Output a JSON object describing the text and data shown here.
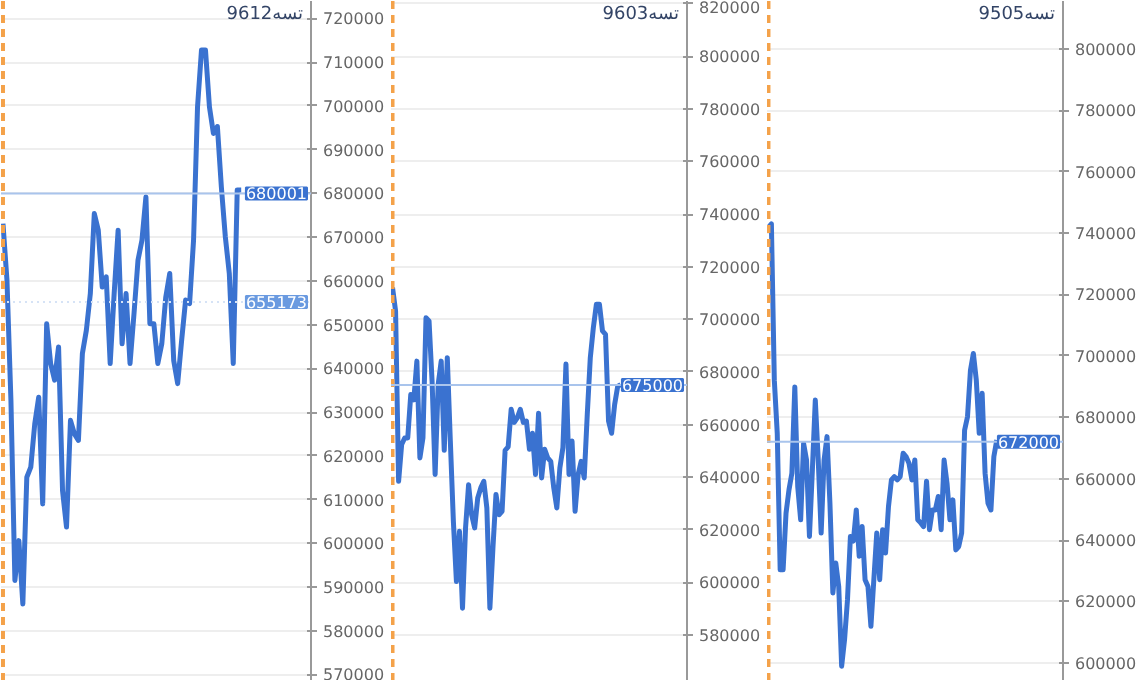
{
  "chart_data": [
    {
      "type": "line",
      "title": "تسه9612",
      "categories": [
        null,
        null,
        null,
        null,
        null,
        null,
        null,
        null,
        null,
        null,
        null,
        null,
        null,
        null,
        null,
        null,
        null,
        null,
        null,
        null,
        null,
        null,
        null,
        null,
        null,
        null,
        null,
        null,
        null,
        null,
        null,
        null,
        null,
        null,
        null,
        null,
        null,
        null,
        null,
        null,
        null,
        null,
        null,
        null,
        null,
        null,
        null,
        null,
        null,
        null,
        null,
        null,
        null,
        null,
        null,
        null,
        null,
        null,
        null,
        null,
        null
      ],
      "ylim": [
        568500,
        724000
      ],
      "yticks": [
        570000,
        580000,
        590000,
        600000,
        610000,
        620000,
        630000,
        640000,
        650000,
        660000,
        670000,
        680000,
        690000,
        700000,
        710000,
        720000
      ],
      "grid": "y",
      "tick_labels": "y",
      "series": [
        {
          "color": "#3a72d0",
          "values": [
            673100,
            660200,
            632700,
            591500,
            600600,
            586100,
            615100,
            617400,
            627300,
            633400,
            609000,
            650200,
            641100,
            637300,
            644900,
            612000,
            603700,
            628100,
            625000,
            623500,
            643400,
            648700,
            657100,
            675400,
            671600,
            658600,
            660900,
            641100,
            657100,
            671600,
            645600,
            657100,
            641100,
            652500,
            664700,
            669300,
            679200,
            650200,
            650200,
            641100,
            645600,
            656300,
            661700,
            641800,
            636500,
            646400,
            655600,
            654800,
            669300,
            699800,
            712800,
            712800,
            699800,
            693700,
            695300,
            681500,
            670100,
            661700,
            641100,
            680800,
            680800
          ]
        }
      ],
      "ref_lines": [
        {
          "axis": "y",
          "value": 680001,
          "label": "680001",
          "color": "#a9c4ec"
        },
        {
          "axis": "y",
          "value": 655173,
          "label": "655173",
          "color": "#d6e3f6",
          "line_style": "dotted"
        }
      ]
    },
    {
      "type": "line",
      "title": "تسه9603",
      "categories": [
        null,
        null,
        null,
        null,
        null,
        null,
        null,
        null,
        null,
        null,
        null,
        null,
        null,
        null,
        null,
        null,
        null,
        null,
        null,
        null,
        null,
        null,
        null,
        null,
        null,
        null,
        null,
        null,
        null,
        null,
        null,
        null,
        null,
        null,
        null,
        null,
        null,
        null,
        null,
        null,
        null,
        null,
        null,
        null,
        null,
        null,
        null,
        null,
        null,
        null,
        null,
        null,
        null,
        null,
        null,
        null,
        null,
        null,
        null,
        null,
        null,
        null,
        null,
        null,
        null,
        null,
        null,
        null,
        null,
        null,
        null,
        null,
        null,
        null,
        null,
        null
      ],
      "ylim": [
        562500,
        821000
      ],
      "yticks": [
        580000,
        600000,
        620000,
        640000,
        660000,
        680000,
        700000,
        720000,
        740000,
        760000,
        780000,
        800000,
        820000
      ],
      "grid": "y",
      "tick_labels": "y",
      "series": [
        {
          "color": "#3a72d0",
          "values": [
            712100,
            703200,
            638400,
            652400,
            654900,
            654900,
            671400,
            669400,
            684100,
            647300,
            654900,
            700600,
            699400,
            676500,
            641000,
            675200,
            684100,
            650200,
            685400,
            653700,
            623200,
            600300,
            619400,
            590200,
            620700,
            637100,
            625700,
            620700,
            632100,
            635900,
            638400,
            628300,
            590200,
            613000,
            633400,
            625700,
            627000,
            650200,
            651500,
            665800,
            660800,
            662500,
            665800,
            660800,
            661300,
            650600,
            656700,
            641000,
            664300,
            639700,
            650600,
            647300,
            646000,
            635900,
            628300,
            643500,
            651200,
            683000,
            641000,
            653700,
            627000,
            641000,
            646000,
            639700,
            663800,
            685400,
            696800,
            705700,
            705700,
            695600,
            694300,
            661300,
            656700,
            667600,
            674500,
            675200
          ]
        }
      ],
      "ref_lines": [
        {
          "axis": "y",
          "value": 675000,
          "label": "675000",
          "color": "#a9c4ec"
        }
      ]
    },
    {
      "type": "line",
      "title": "تسه9505",
      "categories": [
        null,
        null,
        null,
        null,
        null,
        null,
        null,
        null,
        null,
        null,
        null,
        null,
        null,
        null,
        null,
        null,
        null,
        null,
        null,
        null,
        null,
        null,
        null,
        null,
        null,
        null,
        null,
        null,
        null,
        null,
        null,
        null,
        null,
        null,
        null,
        null,
        null,
        null,
        null,
        null,
        null,
        null,
        null,
        null,
        null,
        null,
        null,
        null,
        null,
        null,
        null,
        null,
        null,
        null,
        null,
        null,
        null,
        null,
        null,
        null,
        null,
        null,
        null,
        null,
        null,
        null,
        null,
        null,
        null,
        null,
        null,
        null,
        null,
        null,
        null,
        null,
        null,
        null,
        null
      ],
      "ylim": [
        594100,
        815600
      ],
      "yticks": [
        600000,
        620000,
        640000,
        660000,
        680000,
        700000,
        720000,
        740000,
        760000,
        780000,
        800000
      ],
      "grid": "y",
      "tick_labels": "y",
      "series": [
        {
          "color": "#3a72d0",
          "values": [
            741900,
            743000,
            692100,
            674800,
            630300,
            630300,
            648800,
            656300,
            661800,
            689900,
            657400,
            646600,
            671500,
            666100,
            641200,
            662800,
            685600,
            666100,
            642300,
            666100,
            673700,
            652000,
            622800,
            632500,
            624900,
            598900,
            607600,
            620600,
            641200,
            639700,
            649800,
            634700,
            644400,
            627100,
            624900,
            611900,
            627100,
            642300,
            627100,
            643400,
            635800,
            650900,
            659600,
            660700,
            659600,
            660700,
            668300,
            667200,
            665000,
            659600,
            666100,
            646600,
            645600,
            644400,
            659200,
            643400,
            649800,
            649800,
            654200,
            643400,
            666100,
            658500,
            646600,
            653100,
            636800,
            637900,
            642300,
            675800,
            680200,
            695300,
            700800,
            692100,
            674800,
            687800,
            661800,
            652000,
            649800,
            667200,
            672600
          ]
        }
      ],
      "ref_lines": [
        {
          "axis": "y",
          "value": 672000,
          "label": "672000",
          "color": "#a9c4ec"
        }
      ]
    }
  ]
}
